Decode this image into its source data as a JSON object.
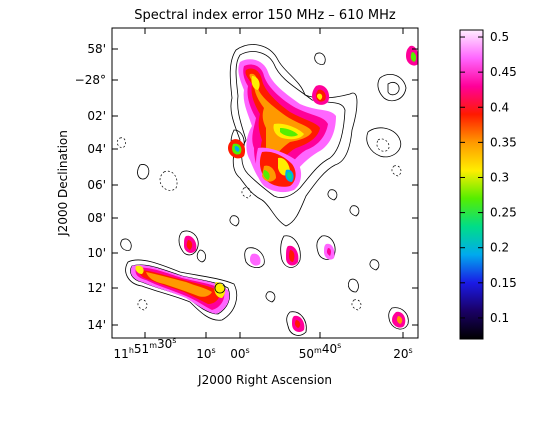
{
  "title": "Spectral index error 150 MHz – 610 MHz",
  "xlabel": "J2000 Right Ascension",
  "ylabel": "J2000 Declination",
  "x_ticks": [
    {
      "label": "11h51m30s",
      "parts": [
        [
          "11",
          "n"
        ],
        [
          "h",
          "s"
        ],
        [
          "51",
          "n"
        ],
        [
          "m",
          "s"
        ],
        [
          "30",
          "n"
        ],
        [
          "s",
          "s"
        ]
      ]
    },
    {
      "label": "10s",
      "parts": [
        [
          "10",
          "n"
        ],
        [
          "s",
          "s"
        ]
      ]
    },
    {
      "label": "00s",
      "parts": [
        [
          "00",
          "n"
        ],
        [
          "s",
          "s"
        ]
      ]
    },
    {
      "label": "50m40s",
      "parts": [
        [
          "50",
          "n"
        ],
        [
          "m",
          "s"
        ],
        [
          "40",
          "n"
        ],
        [
          "s",
          "s"
        ]
      ]
    },
    {
      "label": "20s",
      "parts": [
        [
          "20",
          "n"
        ],
        [
          "s",
          "s"
        ]
      ]
    }
  ],
  "y_ticks": [
    "58'",
    "−28°",
    "02'",
    "04'",
    "06'",
    "08'",
    "10'",
    "12'",
    "14'"
  ],
  "colorbar": {
    "min": 0.07,
    "max": 0.51,
    "ticks": [
      "0.1",
      "0.15",
      "0.2",
      "0.25",
      "0.3",
      "0.35",
      "0.4",
      "0.45",
      "0.5"
    ],
    "tick_values": [
      0.1,
      0.15,
      0.2,
      0.25,
      0.3,
      0.35,
      0.4,
      0.45,
      0.5
    ],
    "colors": [
      "#000000",
      "#1a0066",
      "#1a1ae6",
      "#00aaee",
      "#00dd88",
      "#55ee00",
      "#ffee00",
      "#ff9900",
      "#ff1a00",
      "#ff0099",
      "#ff66ff",
      "#ffeeff"
    ]
  }
}
